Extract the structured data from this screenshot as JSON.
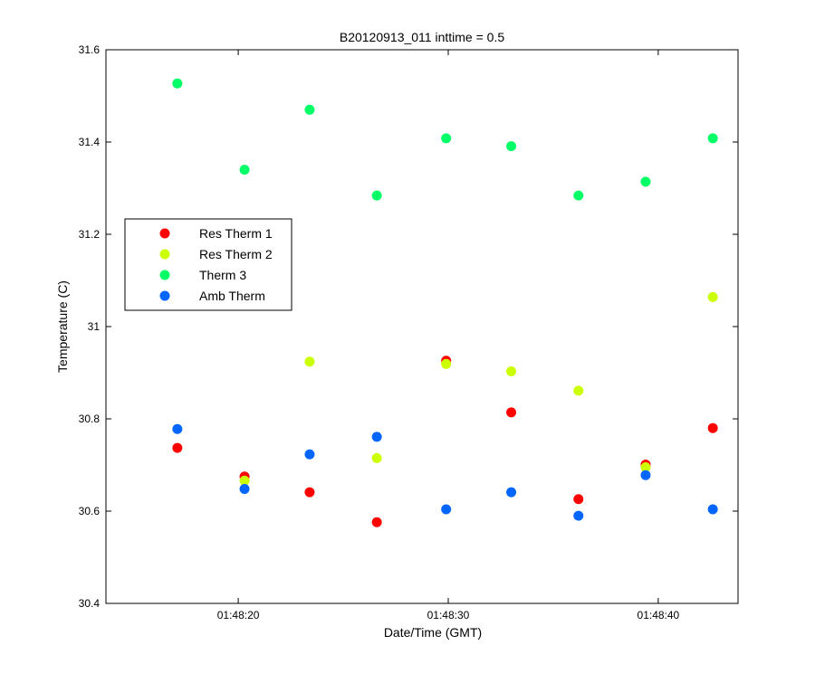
{
  "chart_data": {
    "type": "scatter",
    "title": "B20120913_011 inttime = 0.5",
    "xlabel": "Date/Time (GMT)",
    "ylabel": "Temperature (C)",
    "xlim": [
      "01:48:13.7",
      "01:48:43.8"
    ],
    "ylim": [
      30.4,
      31.6
    ],
    "y_ticks": [
      30.4,
      30.6,
      30.8,
      31.0,
      31.2,
      31.4,
      31.6
    ],
    "y_tick_labels": [
      "30.4",
      "30.6",
      "30.8",
      "31",
      "31.2",
      "31.4",
      "31.6"
    ],
    "x_ticks": [
      "01:48:20",
      "01:48:30",
      "01:48:40"
    ],
    "x_tick_labels": [
      "01:48:20",
      "01:48:30",
      "01:48:40"
    ],
    "x": [
      "01:48:17.1",
      "01:48:20.3",
      "01:48:23.4",
      "01:48:26.6",
      "01:48:29.9",
      "01:48:33.0",
      "01:48:36.2",
      "01:48:39.4",
      "01:48:42.6"
    ],
    "series": [
      {
        "name": "Res Therm 1",
        "color": "#ff0000",
        "values": [
          30.737,
          30.675,
          30.641,
          30.576,
          30.926,
          30.814,
          30.626,
          30.701,
          30.78
        ]
      },
      {
        "name": "Res Therm 2",
        "color": "#ccff00",
        "values": [
          null,
          30.666,
          30.924,
          30.715,
          30.919,
          30.903,
          30.861,
          30.695,
          31.064
        ]
      },
      {
        "name": "Therm 3",
        "color": "#00ff66",
        "values": [
          31.527,
          31.34,
          31.47,
          31.284,
          31.408,
          31.391,
          31.284,
          31.314,
          31.408
        ]
      },
      {
        "name": "Amb Therm",
        "color": "#0066ff",
        "values": [
          30.778,
          30.648,
          30.723,
          30.761,
          30.604,
          30.641,
          30.59,
          30.678,
          30.604
        ]
      }
    ],
    "legend_position": "left-center",
    "grid": false
  }
}
